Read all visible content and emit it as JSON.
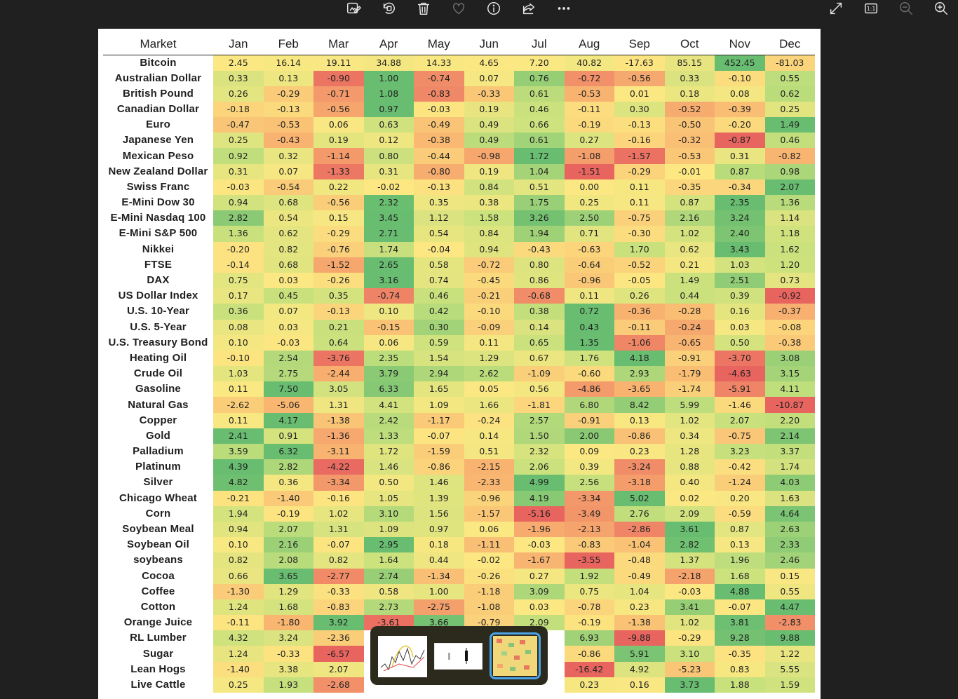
{
  "toolbar": {
    "buttons": [
      "edit-image",
      "rotate",
      "delete",
      "favorite",
      "info",
      "share",
      "more"
    ],
    "right_buttons": [
      "full-screen",
      "actual-size",
      "zoom-out",
      "zoom-in"
    ],
    "actual_size_label": "1:1"
  },
  "table": {
    "header": [
      "Market",
      "Jan",
      "Feb",
      "Mar",
      "Apr",
      "May",
      "Jun",
      "Jul",
      "Aug",
      "Sep",
      "Oct",
      "Nov",
      "Dec"
    ],
    "rows": [
      {
        "name": "Bitcoin",
        "values": [
          2.45,
          16.14,
          19.11,
          34.88,
          14.33,
          4.65,
          7.2,
          40.82,
          -17.63,
          85.15,
          452.45,
          -81.03
        ]
      },
      {
        "name": "Australian Dollar",
        "values": [
          0.33,
          0.13,
          -0.9,
          1.0,
          -0.74,
          0.07,
          0.76,
          -0.72,
          -0.56,
          0.33,
          -0.1,
          0.55
        ]
      },
      {
        "name": "British Pound",
        "values": [
          0.26,
          -0.29,
          -0.71,
          1.08,
          -0.83,
          -0.33,
          0.61,
          -0.53,
          0.01,
          0.18,
          0.08,
          0.62
        ]
      },
      {
        "name": "Canadian Dollar",
        "values": [
          -0.18,
          -0.13,
          -0.56,
          0.97,
          -0.03,
          0.19,
          0.46,
          -0.11,
          0.3,
          -0.52,
          -0.39,
          0.25
        ]
      },
      {
        "name": "Euro",
        "values": [
          -0.47,
          -0.53,
          0.06,
          0.63,
          -0.49,
          0.49,
          0.66,
          -0.19,
          -0.13,
          -0.5,
          -0.2,
          1.49
        ]
      },
      {
        "name": "Japanese Yen",
        "values": [
          0.25,
          -0.43,
          0.19,
          0.12,
          -0.38,
          0.49,
          0.61,
          0.27,
          -0.16,
          -0.32,
          -0.87,
          0.46
        ]
      },
      {
        "name": "Mexican Peso",
        "values": [
          0.92,
          0.32,
          -1.14,
          0.8,
          -0.44,
          -0.98,
          1.72,
          -1.08,
          -1.57,
          -0.53,
          0.31,
          -0.82
        ]
      },
      {
        "name": "New Zealand Dollar",
        "values": [
          0.31,
          0.07,
          -1.33,
          0.31,
          -0.8,
          0.19,
          1.04,
          -1.51,
          -0.29,
          -0.01,
          0.87,
          0.98
        ]
      },
      {
        "name": "Swiss Franc",
        "values": [
          -0.03,
          -0.54,
          0.22,
          -0.02,
          -0.13,
          0.84,
          0.51,
          0.0,
          0.11,
          -0.35,
          -0.34,
          2.07
        ]
      },
      {
        "name": "E-Mini Dow 30",
        "values": [
          0.94,
          0.68,
          -0.56,
          2.32,
          0.35,
          0.38,
          1.75,
          0.25,
          0.11,
          0.87,
          2.35,
          1.36
        ]
      },
      {
        "name": "E-Mini Nasdaq 100",
        "values": [
          2.82,
          0.54,
          0.15,
          3.45,
          1.12,
          1.58,
          3.26,
          2.5,
          -0.75,
          2.16,
          3.24,
          1.14
        ]
      },
      {
        "name": "E-Mini S&P 500",
        "values": [
          1.36,
          0.62,
          -0.29,
          2.71,
          0.54,
          0.84,
          1.94,
          0.71,
          -0.3,
          1.02,
          2.4,
          1.18
        ]
      },
      {
        "name": "Nikkei",
        "values": [
          -0.2,
          0.82,
          -0.76,
          1.74,
          -0.04,
          0.94,
          -0.43,
          -0.63,
          1.7,
          0.62,
          3.43,
          1.62
        ]
      },
      {
        "name": "FTSE",
        "values": [
          -0.14,
          0.68,
          -1.52,
          2.65,
          0.58,
          -0.72,
          0.8,
          -0.64,
          -0.52,
          0.21,
          1.03,
          1.2
        ]
      },
      {
        "name": "DAX",
        "values": [
          0.75,
          0.03,
          -0.26,
          3.16,
          0.74,
          -0.45,
          0.86,
          -0.96,
          -0.05,
          1.49,
          2.51,
          0.73
        ]
      },
      {
        "name": "US Dollar Index",
        "values": [
          0.17,
          0.45,
          0.35,
          -0.74,
          0.46,
          -0.21,
          -0.68,
          0.11,
          0.26,
          0.44,
          0.39,
          -0.92
        ]
      },
      {
        "name": "U.S. 10-Year",
        "values": [
          0.36,
          0.07,
          -0.13,
          0.1,
          0.42,
          -0.1,
          0.38,
          0.72,
          -0.36,
          -0.28,
          0.16,
          -0.37
        ]
      },
      {
        "name": "U.S. 5-Year",
        "values": [
          0.08,
          0.03,
          0.21,
          -0.15,
          0.3,
          -0.09,
          0.14,
          0.43,
          -0.11,
          -0.24,
          0.03,
          -0.08
        ]
      },
      {
        "name": "U.S. Treasury Bond",
        "values": [
          0.1,
          -0.03,
          0.64,
          0.06,
          0.59,
          0.11,
          0.65,
          1.35,
          -1.06,
          -0.65,
          0.5,
          -0.38
        ]
      },
      {
        "name": "Heating Oil",
        "values": [
          -0.1,
          2.54,
          -3.76,
          2.35,
          1.54,
          1.29,
          0.67,
          1.76,
          4.18,
          -0.91,
          -3.7,
          3.08
        ]
      },
      {
        "name": "Crude Oil",
        "values": [
          1.03,
          2.75,
          -2.44,
          3.79,
          2.94,
          2.62,
          -1.09,
          -0.6,
          2.93,
          -1.79,
          -4.63,
          3.15
        ]
      },
      {
        "name": "Gasoline",
        "values": [
          0.11,
          7.5,
          3.05,
          6.33,
          1.65,
          0.05,
          0.56,
          -4.86,
          -3.65,
          -1.74,
          -5.91,
          4.11
        ]
      },
      {
        "name": "Natural Gas",
        "values": [
          -2.62,
          -5.06,
          1.31,
          4.41,
          1.09,
          1.66,
          -1.81,
          6.8,
          8.42,
          5.99,
          -1.46,
          -10.87
        ]
      },
      {
        "name": "Copper",
        "values": [
          0.11,
          4.17,
          -1.38,
          2.42,
          -1.17,
          -0.24,
          2.57,
          -0.91,
          0.13,
          1.02,
          2.07,
          2.2
        ]
      },
      {
        "name": "Gold",
        "values": [
          2.41,
          0.91,
          -1.36,
          1.33,
          -0.07,
          0.14,
          1.5,
          2.0,
          -0.86,
          0.34,
          -0.75,
          2.14
        ]
      },
      {
        "name": "Palladium",
        "values": [
          3.59,
          6.32,
          -3.11,
          1.72,
          -1.59,
          0.51,
          2.32,
          0.09,
          0.23,
          1.28,
          3.23,
          3.37
        ]
      },
      {
        "name": "Platinum",
        "values": [
          4.39,
          2.82,
          -4.22,
          1.46,
          -0.86,
          -2.15,
          2.06,
          0.39,
          -3.24,
          0.88,
          -0.42,
          1.74
        ]
      },
      {
        "name": "Silver",
        "values": [
          4.82,
          0.36,
          -3.34,
          0.5,
          1.46,
          -2.33,
          4.99,
          2.56,
          -3.18,
          0.4,
          -1.24,
          4.03
        ]
      },
      {
        "name": "Chicago Wheat",
        "values": [
          -0.21,
          -1.4,
          -0.16,
          1.05,
          1.39,
          -0.96,
          4.19,
          -3.34,
          5.02,
          0.02,
          0.2,
          1.63
        ]
      },
      {
        "name": "Corn",
        "values": [
          1.94,
          -0.19,
          1.02,
          3.1,
          1.56,
          -1.57,
          -5.16,
          -3.49,
          2.76,
          2.09,
          -0.59,
          4.64
        ]
      },
      {
        "name": "Soybean Meal",
        "values": [
          0.94,
          2.07,
          1.31,
          1.09,
          0.97,
          0.06,
          -1.96,
          -2.13,
          -2.86,
          3.61,
          0.87,
          2.63
        ]
      },
      {
        "name": "Soybean Oil",
        "values": [
          0.1,
          2.16,
          -0.07,
          2.95,
          0.18,
          -1.11,
          -0.03,
          -0.83,
          -1.04,
          2.82,
          0.13,
          2.33
        ]
      },
      {
        "name": "soybeans",
        "values": [
          0.82,
          2.08,
          0.82,
          1.64,
          0.44,
          -0.02,
          -1.67,
          -3.55,
          -0.48,
          1.37,
          1.96,
          2.46
        ]
      },
      {
        "name": "Cocoa",
        "values": [
          0.66,
          3.65,
          -2.77,
          2.74,
          -1.34,
          -0.26,
          0.27,
          1.92,
          -0.49,
          -2.18,
          1.68,
          0.15
        ]
      },
      {
        "name": "Coffee",
        "values": [
          -1.3,
          1.29,
          -0.33,
          0.58,
          1.0,
          -1.18,
          3.09,
          0.75,
          1.04,
          -0.03,
          4.88,
          0.55
        ]
      },
      {
        "name": "Cotton",
        "values": [
          1.24,
          1.68,
          -0.83,
          2.73,
          -2.75,
          -1.08,
          0.03,
          -0.78,
          0.23,
          3.41,
          -0.07,
          4.47
        ]
      },
      {
        "name": "Orange Juice",
        "values": [
          -0.11,
          -1.8,
          3.92,
          -3.61,
          3.66,
          -0.79,
          2.09,
          -0.19,
          -1.38,
          1.02,
          3.81,
          -2.83
        ]
      },
      {
        "name": "RL Lumber",
        "values": [
          4.32,
          3.24,
          -2.36,
          null,
          null,
          null,
          null,
          6.93,
          -9.88,
          -0.29,
          9.28,
          9.88
        ]
      },
      {
        "name": "Sugar",
        "values": [
          1.24,
          -0.33,
          -6.57,
          null,
          null,
          null,
          null,
          -0.86,
          5.91,
          3.1,
          -0.35,
          1.22
        ]
      },
      {
        "name": "Lean Hogs",
        "values": [
          -1.4,
          3.38,
          2.07,
          null,
          null,
          null,
          null,
          -16.42,
          4.92,
          -5.23,
          0.83,
          5.55
        ]
      },
      {
        "name": "Live Cattle",
        "values": [
          0.25,
          1.93,
          -2.68,
          null,
          null,
          null,
          null,
          0.23,
          0.16,
          3.73,
          1.88,
          1.59
        ]
      }
    ]
  },
  "filmstrip": {
    "thumbnails": [
      "line-chart-thumbnail",
      "candlestick-thumbnail",
      "heatmap-thumbnail"
    ],
    "selected_index": 2
  }
}
